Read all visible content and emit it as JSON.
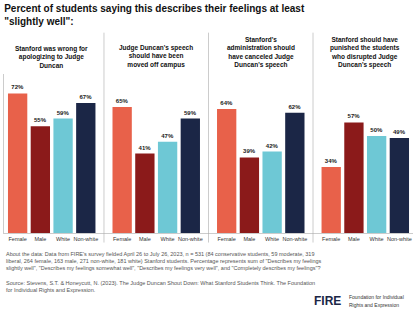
{
  "chart_data": {
    "type": "bar",
    "title": "Percent of students saying this describes their feelings at least\n\"slightly well\":",
    "categories": [
      "Female",
      "Male",
      "White",
      "Non-white",
      "Female",
      "Male",
      "White",
      "Non-white",
      "Female",
      "Male",
      "White",
      "Non-white",
      "Female",
      "Male",
      "White",
      "Non-white"
    ],
    "values": [
      72,
      55,
      59,
      67,
      65,
      41,
      47,
      59,
      64,
      39,
      42,
      62,
      34,
      57,
      50,
      49
    ],
    "value_labels": [
      "72%",
      "55%",
      "59%",
      "67%",
      "65%",
      "41%",
      "47%",
      "59%",
      "64%",
      "39%",
      "42%",
      "62%",
      "34%",
      "57%",
      "50%",
      "49%"
    ],
    "colors": [
      "#E8614A",
      "#8B1A1A",
      "#6EC8D5",
      "#1B2646",
      "#E8614A",
      "#8B1A1A",
      "#6EC8D5",
      "#1B2646",
      "#E8614A",
      "#8B1A1A",
      "#6EC8D5",
      "#1B2646",
      "#E8614A",
      "#8B1A1A",
      "#6EC8D5",
      "#1B2646"
    ],
    "ylim": [
      0,
      82
    ],
    "data_labels": true,
    "tick_labels": "x",
    "grid": false,
    "annotations": [
      {
        "text": "Stanford was wrong for\napologizing to Judge\nDuncan"
      },
      {
        "text": "Judge Duncan's speech\nshould have been\nmoved off campus"
      },
      {
        "text": "Stanford's\nadministration should\nhave canceled Judge\nDuncan's speech"
      },
      {
        "text": "Stanford should have\npunished the students\nwho disrupted Judge\nDuncan's speech"
      },
      {
        "text": "About the data: Data from FIRE's survey fielded April 26 to July 26, 2023, n = 531 (84 conservative students, 59 moderate, 319\nliberal, 264 female, 163 male, 271 non-white, 181 white) Stanford students. Percentage represents sum of \"Describes my feelings\nslightly well\", \"Describes my feelings somewhat well\", \"Describes my feelings very well\", and \"Completely describes my feelings\"?\n\nSource: Stevens, S.T. & Honeycutt, N. (2023). The Judge Duncan Shout Down: What Stanford Students Think. The Foundation\nfor Individual Rights and Expression."
      },
      {
        "text": "FIRE"
      },
      {
        "text": "Foundation for Individual"
      },
      {
        "text": "Rights and Expression"
      }
    ]
  }
}
